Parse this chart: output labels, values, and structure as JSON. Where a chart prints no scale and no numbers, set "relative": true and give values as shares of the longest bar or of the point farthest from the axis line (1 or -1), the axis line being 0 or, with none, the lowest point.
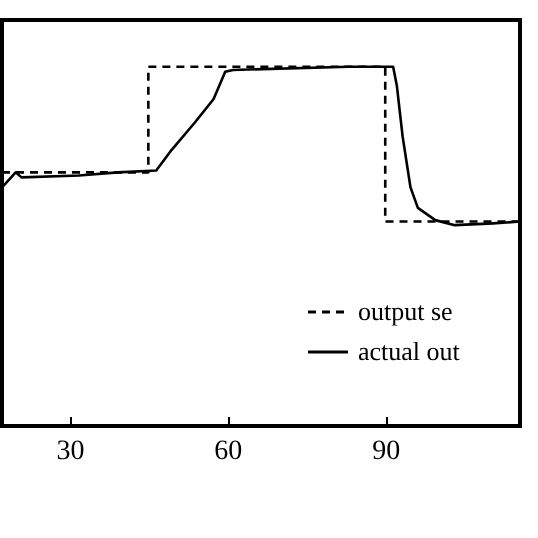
{
  "chart_data": {
    "type": "line",
    "relative": true,
    "xlim": [
      17.2,
      115.6
    ],
    "xticks": [
      30,
      60,
      90
    ],
    "legend": "bottom right",
    "grid": false,
    "series": [
      {
        "name": "output se",
        "color": "#000000",
        "line_style": "dashed",
        "x": [
          17.2,
          45,
          45,
          90,
          90,
          115.6
        ],
        "values": [
          0.706,
          0.706,
          1,
          1,
          0.569,
          0.569
        ]
      },
      {
        "name": "actual out",
        "color": "#000000",
        "line_style": "solid",
        "x": [
          17.2,
          19.8,
          20.9,
          31.8,
          39.2,
          46.5,
          49.4,
          53.8,
          57.4,
          59.6,
          61.1,
          83.1,
          91.5,
          92.2,
          93.3,
          94.8,
          96.2,
          99.5,
          103.2,
          110.5,
          115.6
        ],
        "values": [
          0.664,
          0.706,
          0.692,
          0.697,
          0.706,
          0.711,
          0.768,
          0.844,
          0.91,
          0.986,
          0.991,
          1,
          1,
          0.948,
          0.806,
          0.664,
          0.607,
          0.573,
          0.559,
          0.564,
          0.569
        ]
      }
    ]
  }
}
